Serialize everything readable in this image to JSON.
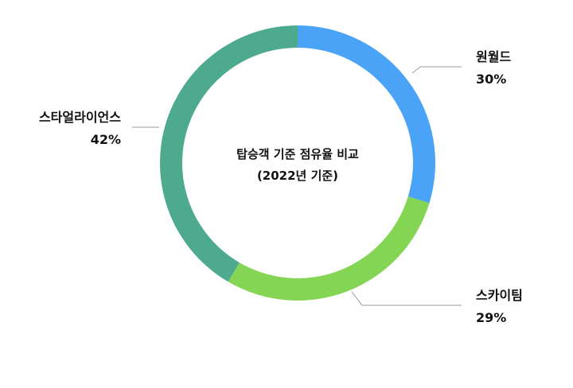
{
  "chart_data": {
    "type": "pie",
    "style": "donut",
    "center_title_line1": "탑승객 기준 점유율 비교",
    "center_title_line2": "(2022년 기준)",
    "categories": [
      "원월드",
      "스카이팀",
      "스타얼라이언스"
    ],
    "values": [
      30,
      29,
      42
    ],
    "value_labels": [
      "30%",
      "29%",
      "42%"
    ],
    "colors": [
      "#4aa3f7",
      "#84d553",
      "#4daa8e"
    ],
    "legend": "none"
  }
}
